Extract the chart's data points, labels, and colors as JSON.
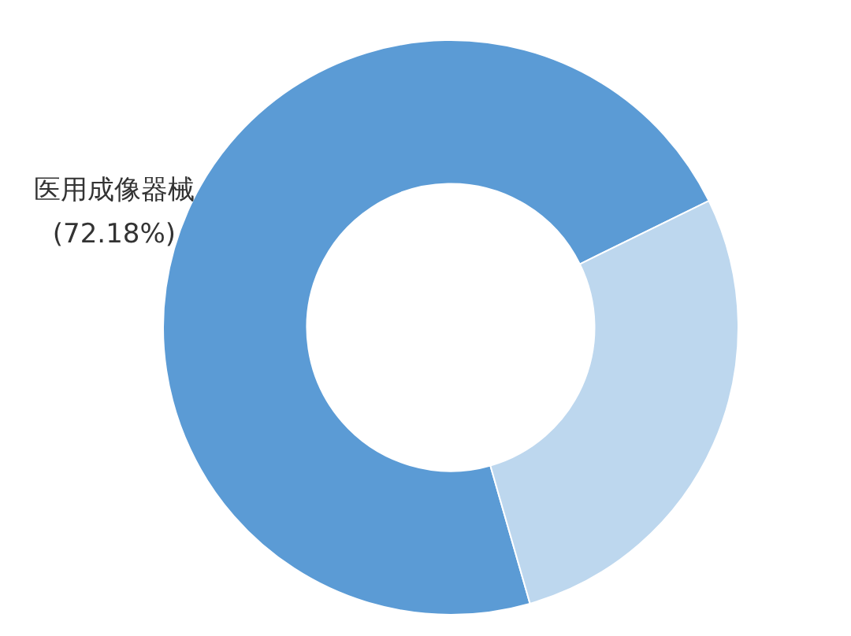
{
  "chart_data": {
    "type": "donut",
    "categories": [
      "医用成像器械",
      null
    ],
    "values": [
      72.18,
      27.82
    ],
    "colors": [
      "#5b9bd5",
      "#bdd7ee"
    ],
    "value_labels": [
      "(72.18%)",
      null
    ],
    "legend": false
  }
}
